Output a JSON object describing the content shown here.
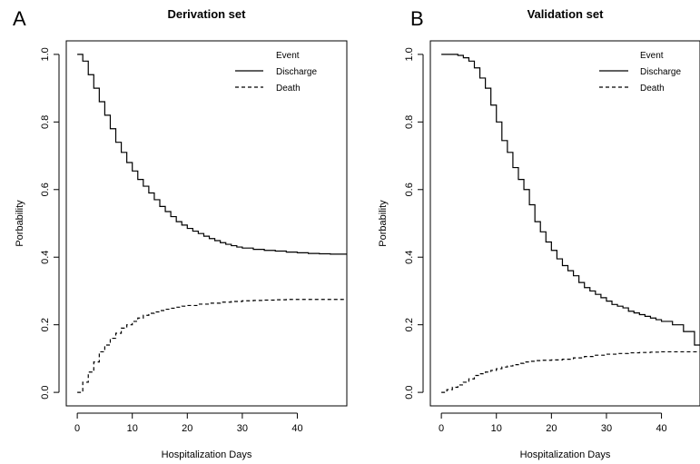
{
  "chart_data": [
    {
      "panel_letter": "A",
      "type": "line",
      "title": "Derivation set",
      "xlabel": "Hospitalization Days",
      "ylabel": "Porbability",
      "xlim": [
        -2,
        49
      ],
      "ylim": [
        -0.04,
        1.04
      ],
      "x_ticks": [
        0,
        10,
        20,
        30,
        40
      ],
      "y_ticks": [
        0.0,
        0.2,
        0.4,
        0.6,
        0.8,
        1.0
      ],
      "y_tick_labels": [
        "0.0",
        "0.2",
        "0.4",
        "0.6",
        "0.8",
        "1.0"
      ],
      "x_tick_labels": [
        "0",
        "10",
        "20",
        "30",
        "40"
      ],
      "step": true,
      "legend": {
        "title": "Event",
        "position": "top-right"
      },
      "series": [
        {
          "name": "Discharge",
          "line_style": "solid",
          "x": [
            0,
            1,
            2,
            3,
            4,
            5,
            6,
            7,
            8,
            9,
            10,
            11,
            12,
            13,
            14,
            15,
            16,
            17,
            18,
            19,
            20,
            21,
            22,
            23,
            24,
            25,
            26,
            27,
            28,
            29,
            30,
            32,
            34,
            36,
            38,
            40,
            42,
            44,
            46,
            48
          ],
          "y": [
            1.0,
            0.98,
            0.94,
            0.9,
            0.86,
            0.82,
            0.78,
            0.74,
            0.71,
            0.68,
            0.655,
            0.63,
            0.61,
            0.59,
            0.57,
            0.55,
            0.535,
            0.52,
            0.505,
            0.495,
            0.485,
            0.477,
            0.47,
            0.462,
            0.455,
            0.449,
            0.443,
            0.438,
            0.434,
            0.43,
            0.427,
            0.423,
            0.42,
            0.418,
            0.415,
            0.413,
            0.411,
            0.41,
            0.409,
            0.409
          ]
        },
        {
          "name": "Death",
          "line_style": "dashed",
          "x": [
            0,
            1,
            2,
            3,
            4,
            5,
            6,
            7,
            8,
            9,
            10,
            11,
            12,
            13,
            14,
            15,
            16,
            17,
            18,
            19,
            20,
            22,
            24,
            26,
            28,
            30,
            32,
            34,
            36,
            38,
            40,
            44,
            48
          ],
          "y": [
            0.0,
            0.03,
            0.06,
            0.09,
            0.12,
            0.14,
            0.16,
            0.175,
            0.19,
            0.2,
            0.21,
            0.22,
            0.228,
            0.234,
            0.238,
            0.242,
            0.246,
            0.249,
            0.252,
            0.255,
            0.257,
            0.261,
            0.264,
            0.267,
            0.269,
            0.271,
            0.272,
            0.273,
            0.274,
            0.275,
            0.275,
            0.275,
            0.275
          ]
        }
      ]
    },
    {
      "panel_letter": "B",
      "type": "line",
      "title": "Validation set",
      "xlabel": "Hospitalization Days",
      "ylabel": "Porbability",
      "xlim": [
        -2,
        47
      ],
      "ylim": [
        -0.04,
        1.04
      ],
      "x_ticks": [
        0,
        10,
        20,
        30,
        40
      ],
      "y_ticks": [
        0.0,
        0.2,
        0.4,
        0.6,
        0.8,
        1.0
      ],
      "y_tick_labels": [
        "0.0",
        "0.2",
        "0.4",
        "0.6",
        "0.8",
        "1.0"
      ],
      "x_tick_labels": [
        "0",
        "10",
        "20",
        "30",
        "40"
      ],
      "step": true,
      "legend": {
        "title": "Event",
        "position": "top-right"
      },
      "series": [
        {
          "name": "Discharge",
          "line_style": "solid",
          "x": [
            0,
            1,
            2,
            3,
            4,
            5,
            6,
            7,
            8,
            9,
            10,
            11,
            12,
            13,
            14,
            15,
            16,
            17,
            18,
            19,
            20,
            21,
            22,
            23,
            24,
            25,
            26,
            27,
            28,
            29,
            30,
            31,
            32,
            33,
            34,
            35,
            36,
            37,
            38,
            39,
            40,
            42,
            44,
            46
          ],
          "y": [
            1.0,
            1.0,
            1.0,
            0.997,
            0.99,
            0.98,
            0.96,
            0.93,
            0.9,
            0.85,
            0.8,
            0.745,
            0.71,
            0.665,
            0.63,
            0.6,
            0.555,
            0.505,
            0.475,
            0.445,
            0.42,
            0.395,
            0.375,
            0.36,
            0.345,
            0.325,
            0.31,
            0.3,
            0.29,
            0.28,
            0.27,
            0.26,
            0.255,
            0.25,
            0.24,
            0.235,
            0.23,
            0.225,
            0.22,
            0.215,
            0.21,
            0.2,
            0.18,
            0.14
          ]
        },
        {
          "name": "Death",
          "line_style": "dashed",
          "x": [
            0,
            1,
            2,
            3,
            4,
            5,
            6,
            7,
            8,
            9,
            10,
            11,
            12,
            13,
            14,
            15,
            16,
            17,
            18,
            20,
            22,
            24,
            26,
            28,
            30,
            32,
            34,
            36,
            38,
            40,
            42,
            44,
            46
          ],
          "y": [
            0.0,
            0.008,
            0.015,
            0.022,
            0.03,
            0.04,
            0.05,
            0.055,
            0.06,
            0.065,
            0.07,
            0.075,
            0.078,
            0.082,
            0.086,
            0.09,
            0.092,
            0.094,
            0.095,
            0.096,
            0.098,
            0.102,
            0.106,
            0.11,
            0.113,
            0.115,
            0.117,
            0.118,
            0.119,
            0.12,
            0.12,
            0.12,
            0.12
          ]
        }
      ]
    }
  ]
}
